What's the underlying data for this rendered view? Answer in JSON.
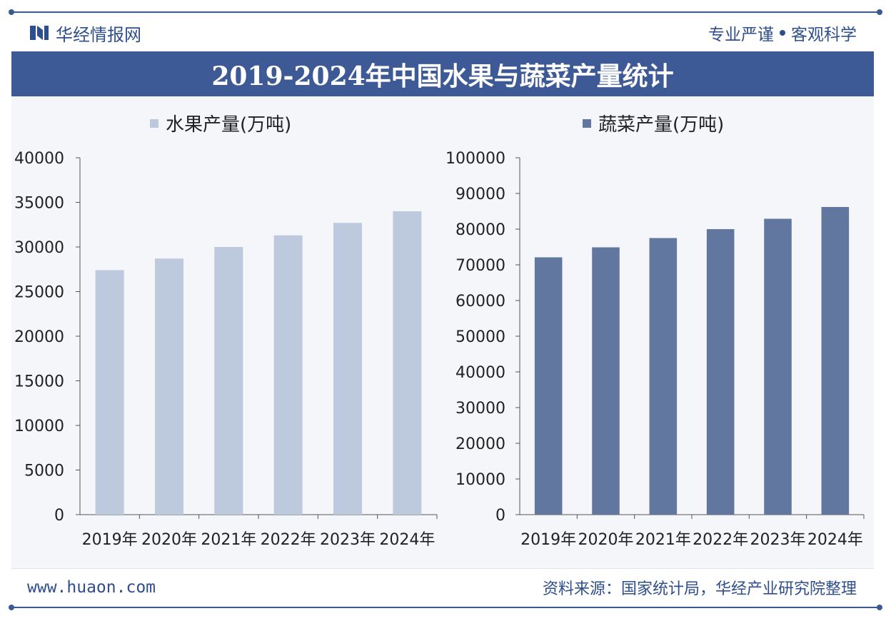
{
  "header": {
    "brand": "华经情报网",
    "slogan_left": "专业严谨",
    "slogan_right": "客观科学"
  },
  "title": "2019-2024年中国水果与蔬菜产量统计",
  "footer": {
    "url": "www.huaon.com",
    "source": "资料来源：国家统计局，华经产业研究院整理"
  },
  "colors": {
    "brand": "#2f4e8c",
    "banner": "#3d5a96",
    "fruit": "#bdc9dc",
    "vegetable": "#61779f"
  },
  "chart_data": [
    {
      "type": "bar",
      "title": "",
      "legend": "水果产量(万吨)",
      "categories": [
        "2019年",
        "2020年",
        "2021年",
        "2022年",
        "2023年",
        "2024年"
      ],
      "values": [
        27400,
        28700,
        30000,
        31300,
        32700,
        34000
      ],
      "ylim": [
        0,
        40000
      ],
      "yticks": [
        0,
        5000,
        10000,
        15000,
        20000,
        25000,
        30000,
        35000,
        40000
      ],
      "xlabel": "",
      "ylabel": "",
      "grid": false
    },
    {
      "type": "bar",
      "title": "",
      "legend": "蔬菜产量(万吨)",
      "categories": [
        "2019年",
        "2020年",
        "2021年",
        "2022年",
        "2023年",
        "2024年"
      ],
      "values": [
        72100,
        74900,
        77500,
        80000,
        82900,
        86200
      ],
      "ylim": [
        0,
        100000
      ],
      "yticks": [
        0,
        10000,
        20000,
        30000,
        40000,
        50000,
        60000,
        70000,
        80000,
        90000,
        100000
      ],
      "xlabel": "",
      "ylabel": "",
      "grid": false
    }
  ]
}
